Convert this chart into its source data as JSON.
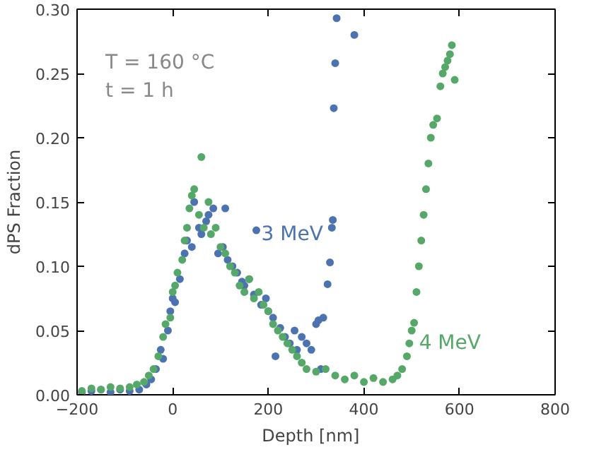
{
  "chart_data": {
    "type": "scatter",
    "xlabel": "Depth   [nm]",
    "ylabel": "dPS Fraction",
    "annotations": [
      "T = 160 °C",
      "t = 1 h"
    ],
    "xlim": [
      -200,
      800
    ],
    "xticks": [
      -200,
      0,
      200,
      400,
      600,
      800
    ],
    "ylim": [
      0,
      0.3
    ],
    "yticks": [
      {
        "value": 0,
        "label": "0.00"
      },
      {
        "value": 0.05,
        "label": "0.05"
      },
      {
        "value": 0.1,
        "label": "0.10"
      },
      {
        "value": 0.15,
        "label": "0.15"
      },
      {
        "value": 0.2,
        "label": "0.20"
      },
      {
        "value": 0.25,
        "label": "0.25"
      },
      {
        "value": 0.3,
        "label": "0.30"
      }
    ],
    "grid": false,
    "marker": "circle",
    "series": [
      {
        "name": "3 MeV",
        "color": "#4c72b0",
        "x": [
          -190,
          -170,
          -150,
          -130,
          -110,
          -90,
          -70,
          -55,
          -45,
          -35,
          -25,
          -20,
          -10,
          -5,
          0,
          5,
          15,
          25,
          30,
          40,
          45,
          55,
          60,
          70,
          75,
          85,
          95,
          105,
          110,
          115,
          125,
          135,
          145,
          150,
          160,
          170,
          175,
          185,
          195,
          200,
          210,
          215,
          225,
          235,
          245,
          255,
          260,
          270,
          280,
          290,
          300,
          305,
          310,
          315,
          324,
          329,
          333,
          335,
          337,
          340,
          343,
          380
        ],
        "values": [
          0.002,
          0.003,
          0.004,
          0.002,
          0.004,
          0.003,
          0.004,
          0.008,
          0.012,
          0.02,
          0.035,
          0.028,
          0.05,
          0.065,
          0.075,
          0.072,
          0.09,
          0.11,
          0.12,
          0.115,
          0.15,
          0.13,
          0.125,
          0.135,
          0.14,
          0.145,
          0.11,
          0.115,
          0.145,
          0.105,
          0.1,
          0.095,
          0.088,
          0.085,
          0.09,
          0.078,
          0.128,
          0.07,
          0.075,
          0.065,
          0.06,
          0.03,
          0.052,
          0.045,
          0.04,
          0.05,
          0.035,
          0.045,
          0.04,
          0.035,
          0.055,
          0.058,
          0.02,
          0.06,
          0.086,
          0.103,
          0.13,
          0.136,
          0.223,
          0.258,
          0.293,
          0.28
        ]
      },
      {
        "name": "4 MeV",
        "color": "#55a868",
        "x": [
          -190,
          -170,
          -150,
          -130,
          -110,
          -90,
          -75,
          -60,
          -50,
          -40,
          -30,
          -20,
          -15,
          -5,
          0,
          5,
          10,
          20,
          25,
          30,
          35,
          40,
          45,
          55,
          60,
          65,
          75,
          80,
          90,
          100,
          110,
          120,
          130,
          140,
          150,
          160,
          170,
          180,
          190,
          200,
          210,
          220,
          230,
          240,
          250,
          260,
          270,
          280,
          300,
          320,
          340,
          360,
          380,
          400,
          420,
          440,
          460,
          470,
          480,
          490,
          495,
          500,
          505,
          510,
          515,
          520,
          525,
          530,
          535,
          540,
          545,
          553,
          560,
          565,
          570,
          575,
          580,
          584,
          590
        ],
        "values": [
          0.003,
          0.005,
          0.004,
          0.006,
          0.005,
          0.006,
          0.008,
          0.01,
          0.015,
          0.02,
          0.03,
          0.045,
          0.055,
          0.06,
          0.08,
          0.085,
          0.095,
          0.105,
          0.12,
          0.13,
          0.145,
          0.155,
          0.16,
          0.14,
          0.185,
          0.13,
          0.15,
          0.125,
          0.13,
          0.115,
          0.11,
          0.1,
          0.095,
          0.085,
          0.08,
          0.09,
          0.075,
          0.08,
          0.07,
          0.065,
          0.055,
          0.05,
          0.045,
          0.04,
          0.035,
          0.03,
          0.025,
          0.02,
          0.018,
          0.02,
          0.015,
          0.012,
          0.015,
          0.01,
          0.013,
          0.01,
          0.012,
          0.015,
          0.02,
          0.03,
          0.04,
          0.05,
          0.056,
          0.08,
          0.1,
          0.12,
          0.14,
          0.16,
          0.18,
          0.2,
          0.21,
          0.215,
          0.24,
          0.25,
          0.255,
          0.26,
          0.265,
          0.272,
          0.245
        ]
      }
    ]
  }
}
